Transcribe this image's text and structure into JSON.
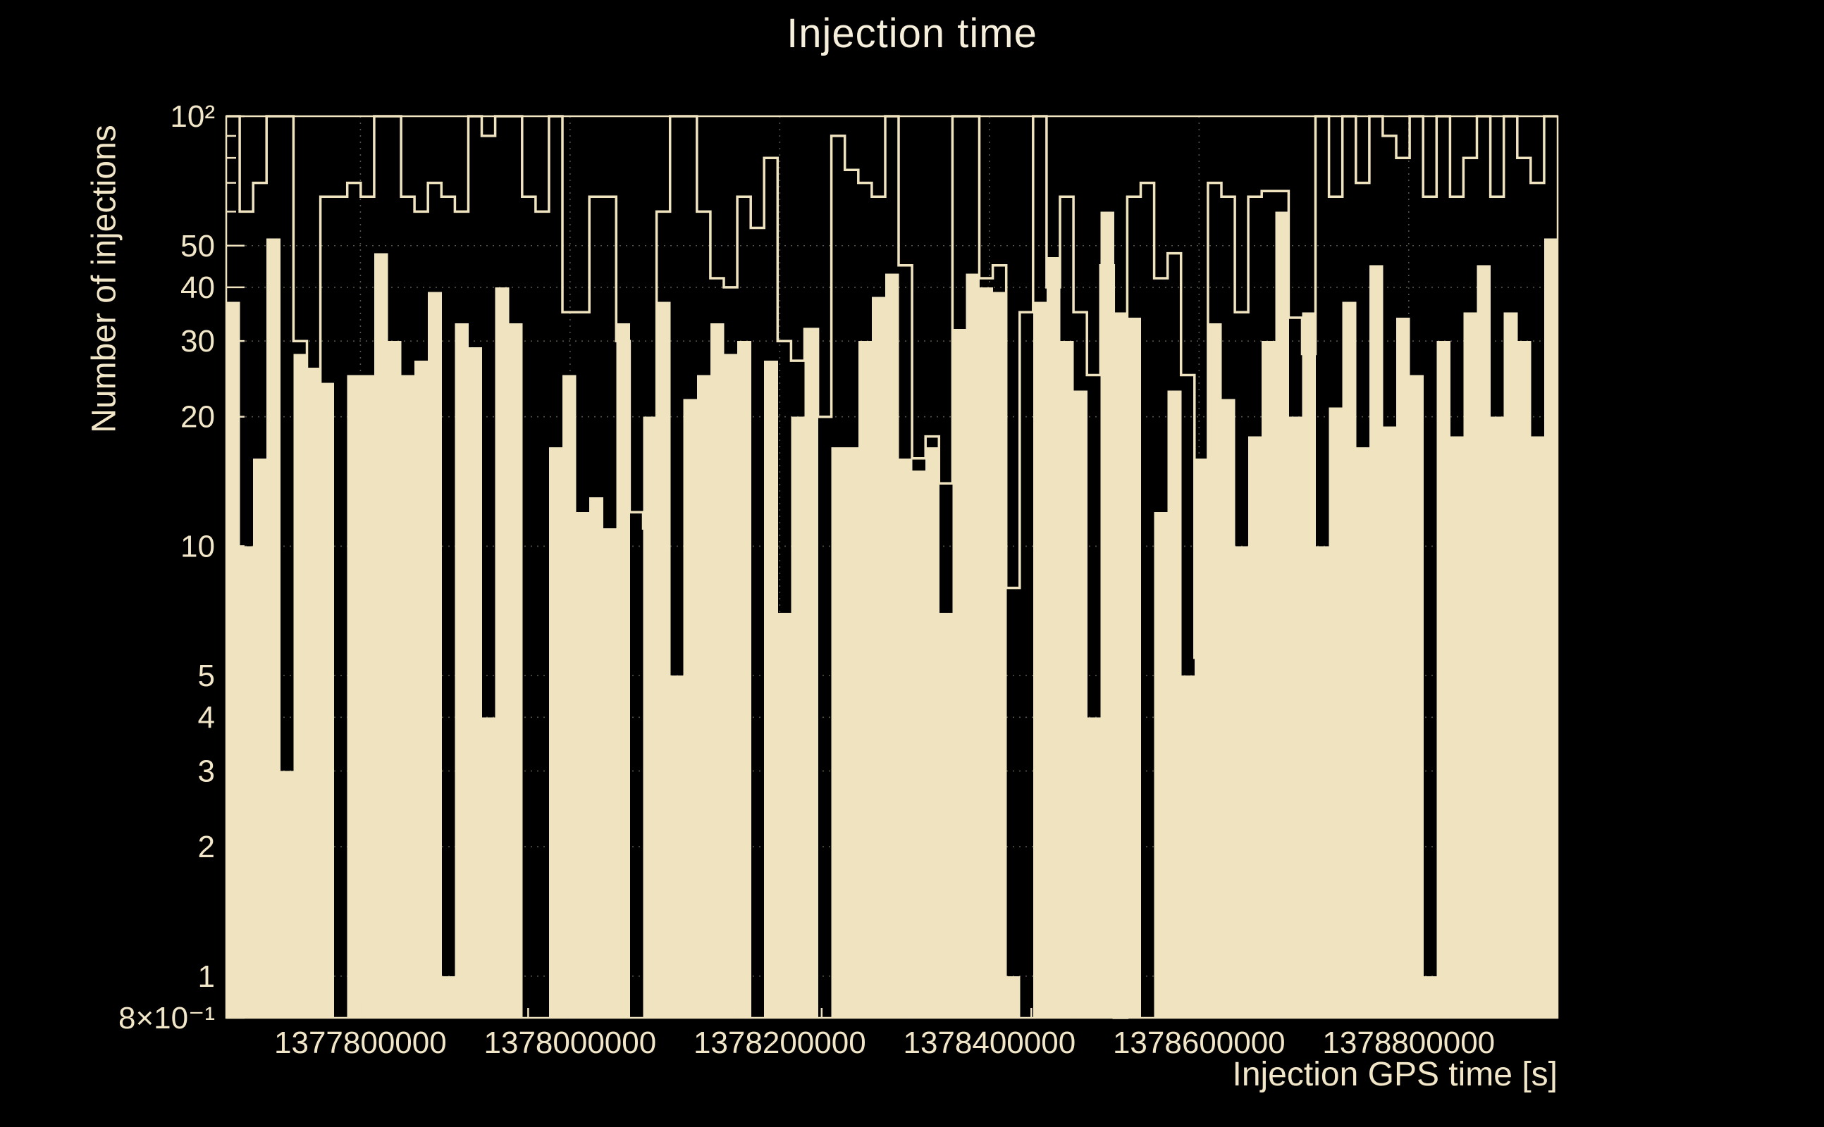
{
  "title": "Injection time",
  "colors": {
    "background": "#000000",
    "bar": "#F0E3C0",
    "outline": "#F0E3C0",
    "frame": "#F0E3C0",
    "text": "#F2E6C8",
    "grid": "#55544a"
  },
  "chart_data": {
    "type": "bar",
    "title": "Injection time",
    "xlabel": "Injection GPS time [s]",
    "ylabel": "Number of injections",
    "yscale": "log",
    "ylim": [
      0.8,
      100
    ],
    "xlim": [
      1377672000,
      1378942000
    ],
    "grid": true,
    "legend": false,
    "x_ticks": [
      {
        "value": 1377800000,
        "label": "1377800000"
      },
      {
        "value": 1378000000,
        "label": "1378000000"
      },
      {
        "value": 1378200000,
        "label": "1378200000"
      },
      {
        "value": 1378400000,
        "label": "1378400000"
      },
      {
        "value": 1378600000,
        "label": "1378600000"
      },
      {
        "value": 1378800000,
        "label": "1378800000"
      }
    ],
    "x_minor_tick_step": 40000,
    "y_ticks": [
      {
        "value": 100,
        "label": "10²"
      },
      {
        "value": 50,
        "label": "50"
      },
      {
        "value": 40,
        "label": "40"
      },
      {
        "value": 30,
        "label": "30"
      },
      {
        "value": 20,
        "label": "20"
      },
      {
        "value": 10,
        "label": "10"
      },
      {
        "value": 5,
        "label": "5"
      },
      {
        "value": 4,
        "label": "4"
      },
      {
        "value": 3,
        "label": "3"
      },
      {
        "value": 2,
        "label": "2"
      },
      {
        "value": 1,
        "label": "1"
      },
      {
        "value": 0.8,
        "label": "8×10⁻¹"
      }
    ],
    "y_minor_ticks": [
      0.9,
      6,
      7,
      8,
      9,
      60,
      70,
      80,
      90
    ],
    "series": [
      {
        "name": "injections per bin (filled histogram)",
        "style": "filled",
        "values": [
          37,
          10,
          16,
          52,
          3,
          28,
          26,
          24,
          0,
          25,
          25,
          48,
          30,
          25,
          27,
          39,
          1,
          33,
          29,
          4,
          40,
          33,
          0,
          0,
          17,
          25,
          12,
          13,
          11,
          33,
          0,
          20,
          37,
          5,
          22,
          25,
          33,
          28,
          30,
          0,
          27,
          7,
          20,
          32,
          0,
          17,
          17,
          30,
          38,
          43,
          16,
          15,
          17,
          7,
          32,
          43,
          40,
          39,
          1,
          0,
          37,
          47,
          30,
          23,
          4,
          60,
          35,
          34,
          0,
          12,
          23,
          5,
          16,
          33,
          22,
          10,
          18,
          30,
          60,
          20,
          35,
          10,
          21,
          37,
          17,
          45,
          19,
          34,
          25,
          1,
          30,
          18,
          35,
          45,
          20,
          35,
          30,
          18,
          52
        ]
      },
      {
        "name": "injections per bin (outline histogram)",
        "style": "step",
        "values": [
          100,
          60,
          70,
          100,
          100,
          30,
          5.5,
          65,
          65,
          70,
          65,
          100,
          100,
          65,
          60,
          70,
          65,
          60,
          100,
          90,
          100,
          100,
          65,
          60,
          100,
          35,
          35,
          65,
          65,
          30,
          12,
          11,
          60,
          100,
          100,
          60,
          42,
          40,
          65,
          55,
          80,
          30,
          27,
          32,
          20,
          90,
          75,
          70,
          65,
          100,
          45,
          16,
          18,
          14,
          100,
          100,
          42,
          45,
          8,
          35,
          100,
          40,
          65,
          35,
          25,
          45,
          0.8,
          65,
          70,
          42,
          48,
          25,
          5.5,
          70,
          65,
          35,
          65,
          67,
          67,
          34,
          28,
          100,
          65,
          100,
          70,
          100,
          90,
          80,
          100,
          65,
          100,
          65,
          80,
          100,
          65,
          100,
          80,
          70,
          100
        ]
      }
    ]
  }
}
